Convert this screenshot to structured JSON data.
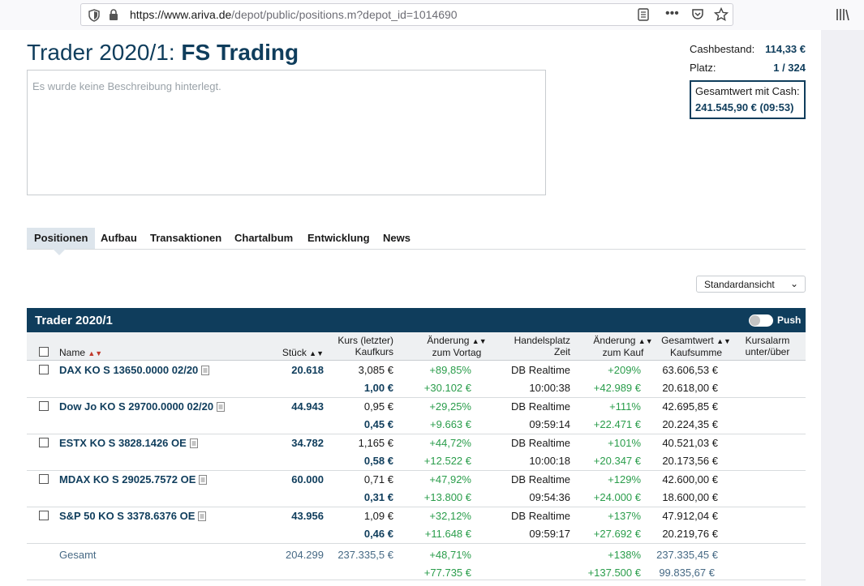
{
  "browser": {
    "url_domain": "https://www.ariva.de",
    "url_path": "/depot/public/positions.m?depot_id=1014690"
  },
  "header": {
    "title_prefix": "Trader 2020/1:",
    "title_name": "FS Trading",
    "description_placeholder": "Es wurde keine Beschreibung hinterlegt."
  },
  "summary": {
    "cash_label": "Cashbestand:",
    "cash_value": "114,33 €",
    "rank_label": "Platz:",
    "rank_value": "1 / 324",
    "total_label": "Gesamtwert mit Cash:",
    "total_value": "241.545,90 € (09:53)"
  },
  "tabs": [
    "Positionen",
    "Aufbau",
    "Transaktionen",
    "Chartalbum",
    "Entwicklung",
    "News"
  ],
  "view_select": "Standardansicht",
  "table": {
    "title": "Trader 2020/1",
    "push_label": "Push",
    "headers": {
      "name": "Name",
      "stueck": "Stück",
      "kurs1": "Kurs (letzter)",
      "kurs2": "Kaufkurs",
      "aend1": "Änderung",
      "aend2": "zum Vortag",
      "handel1": "Handelsplatz",
      "handel2": "Zeit",
      "akauf1": "Änderung",
      "akauf2": "zum Kauf",
      "gesamt1": "Gesamtwert",
      "gesamt2": "Kaufsumme",
      "alarm1": "Kursalarm",
      "alarm2": "unter/über"
    },
    "rows": [
      {
        "name": "DAX KO S 13650.0000 02/20",
        "stueck": "20.618",
        "kurs": "3,085 €",
        "kaufkurs": "1,00 €",
        "vortag_pct": "+89,85%",
        "vortag_abs": "+30.102 €",
        "handelsplatz": "DB Realtime",
        "zeit": "10:00:38",
        "kauf_pct": "+209%",
        "kauf_abs": "+42.989 €",
        "gesamtwert": "63.606,53 €",
        "kaufsumme": "20.618,00 €"
      },
      {
        "name": "Dow Jo KO S 29700.0000 02/20",
        "stueck": "44.943",
        "kurs": "0,95 €",
        "kaufkurs": "0,45 €",
        "vortag_pct": "+29,25%",
        "vortag_abs": "+9.663 €",
        "handelsplatz": "DB Realtime",
        "zeit": "09:59:14",
        "kauf_pct": "+111%",
        "kauf_abs": "+22.471 €",
        "gesamtwert": "42.695,85 €",
        "kaufsumme": "20.224,35 €"
      },
      {
        "name": "ESTX KO S 3828.1426 OE",
        "stueck": "34.782",
        "kurs": "1,165 €",
        "kaufkurs": "0,58 €",
        "vortag_pct": "+44,72%",
        "vortag_abs": "+12.522 €",
        "handelsplatz": "DB Realtime",
        "zeit": "10:00:18",
        "kauf_pct": "+101%",
        "kauf_abs": "+20.347 €",
        "gesamtwert": "40.521,03 €",
        "kaufsumme": "20.173,56 €"
      },
      {
        "name": "MDAX KO S 29025.7572 OE",
        "stueck": "60.000",
        "kurs": "0,71 €",
        "kaufkurs": "0,31 €",
        "vortag_pct": "+47,92%",
        "vortag_abs": "+13.800 €",
        "handelsplatz": "DB Realtime",
        "zeit": "09:54:36",
        "kauf_pct": "+129%",
        "kauf_abs": "+24.000 €",
        "gesamtwert": "42.600,00 €",
        "kaufsumme": "18.600,00 €"
      },
      {
        "name": "S&P 50 KO S 3378.6376 OE",
        "stueck": "43.956",
        "kurs": "1,09 €",
        "kaufkurs": "0,46 €",
        "vortag_pct": "+32,12%",
        "vortag_abs": "+11.648 €",
        "handelsplatz": "DB Realtime",
        "zeit": "09:59:17",
        "kauf_pct": "+137%",
        "kauf_abs": "+27.692 €",
        "gesamtwert": "47.912,04 €",
        "kaufsumme": "20.219,76 €"
      }
    ],
    "total": {
      "label": "Gesamt",
      "stueck": "204.299",
      "kurs": "237.335,5 €",
      "vortag_pct": "+48,71%",
      "vortag_abs": "+77.735 €",
      "kauf_pct": "+138%",
      "kauf_abs": "+137.500 €",
      "gesamtwert": "237.335,45 €",
      "kaufsumme": "99.835,67 €"
    }
  }
}
